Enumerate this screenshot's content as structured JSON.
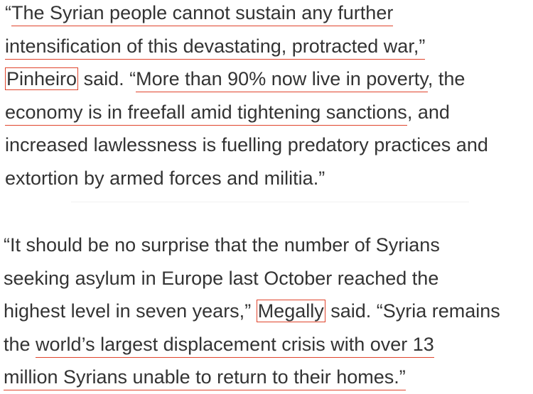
{
  "paragraphs": [
    {
      "lines": [
        [
          "“",
          "The Syrian people cannot sustain any further"
        ],
        [
          "intensification of this devastating, protracted war,”"
        ],
        [
          "Pinheiro",
          " said. “",
          "More than 90% now live in poverty",
          ", the"
        ],
        [
          "economy is in freefall amid tightening sanctions",
          ", and"
        ],
        [
          "increased lawlessness is fuelling predatory practices and"
        ],
        [
          "extortion by armed forces and militia.”"
        ]
      ]
    },
    {
      "lines": [
        [
          "“It should be no surprise that the number of Syrians"
        ],
        [
          "seeking asylum in Europe last October reached the"
        ],
        [
          "highest level in seven years,” ",
          "Megally",
          " said. “Syria remains"
        ],
        [
          "the ",
          "world’s largest displacement crisis with over 13"
        ],
        [
          "million Syrians unable to return to their homes.”"
        ]
      ]
    }
  ]
}
